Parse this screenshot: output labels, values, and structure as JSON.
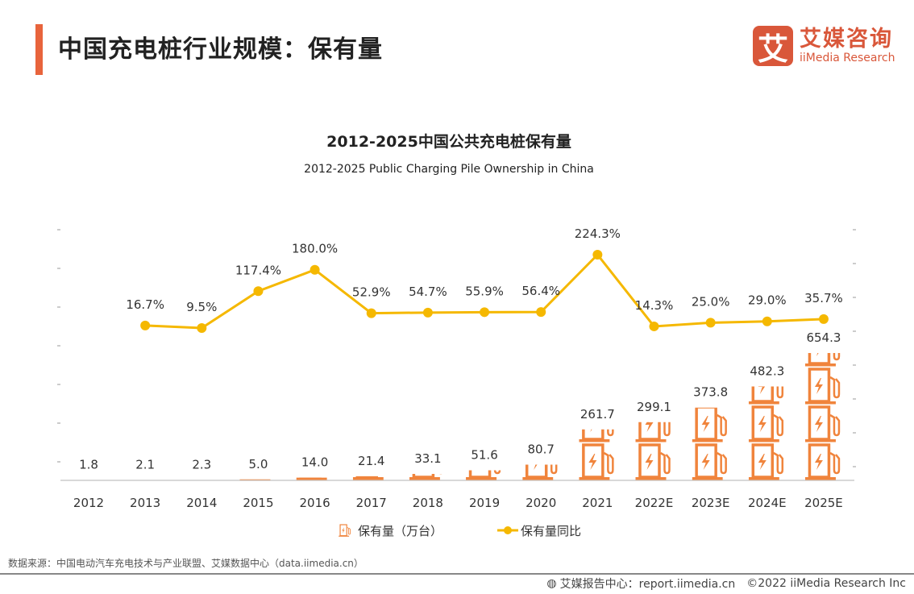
{
  "header": {
    "title": "中国充电桩行业规模：保有量"
  },
  "logo": {
    "icon_char": "艾",
    "cn": "艾媒咨询",
    "en": "iiMedia Research",
    "color": "#d9573a"
  },
  "chart_data": {
    "type": "bar+line",
    "title": "2012-2025中国公共充电桩保有量",
    "subtitle": "2012-2025 Public Charging Pile Ownership in China",
    "categories": [
      "2012",
      "2013",
      "2014",
      "2015",
      "2016",
      "2017",
      "2018",
      "2019",
      "2020",
      "2021",
      "2022E",
      "2023E",
      "2024E",
      "2025E"
    ],
    "series": [
      {
        "name": "保有量（万台）",
        "type": "pictograph-bar",
        "color": "#f0843c",
        "icon": "charging-pile-icon",
        "values": [
          1.8,
          2.1,
          2.3,
          5.0,
          14.0,
          21.4,
          33.1,
          51.6,
          80.7,
          261.7,
          299.1,
          373.8,
          482.3,
          654.3
        ],
        "labels": [
          "1.8",
          "2.1",
          "2.3",
          "5.0",
          "14.0",
          "21.4",
          "33.1",
          "51.6",
          "80.7",
          "261.7",
          "299.1",
          "373.8",
          "482.3",
          "654.3"
        ]
      },
      {
        "name": "保有量同比",
        "type": "line",
        "color": "#f5b800",
        "values": [
          null,
          16.7,
          9.5,
          117.4,
          180.0,
          52.9,
          54.7,
          55.9,
          56.4,
          224.3,
          14.3,
          25.0,
          29.0,
          35.7
        ],
        "labels": [
          "",
          "16.7%",
          "9.5%",
          "117.4%",
          "180.0%",
          "52.9%",
          "54.7%",
          "55.9%",
          "56.4%",
          "224.3%",
          "14.3%",
          "25.0%",
          "29.0%",
          "35.7%"
        ]
      }
    ],
    "legend": "bottom",
    "grid": false
  },
  "source": "数据来源：中国电动汽车充电技术与产业联盟、艾媒数据中心（data.iimedia.cn）",
  "footer": {
    "icon": "globe-icon",
    "report": "艾媒报告中心：report.iimedia.cn",
    "copyright": "©2022  iiMedia Research  Inc"
  }
}
